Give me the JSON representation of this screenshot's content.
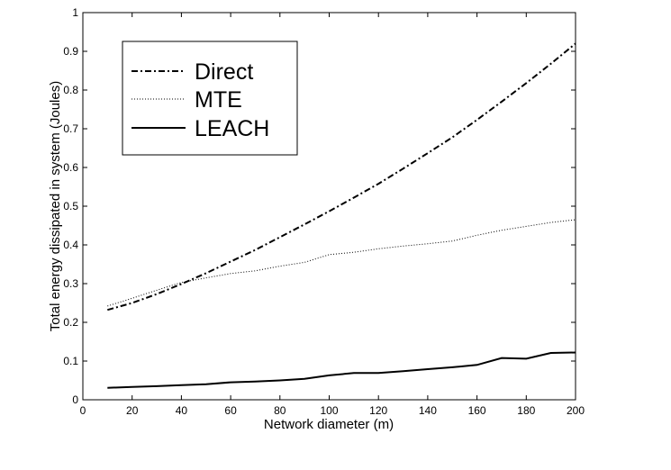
{
  "chart_data": {
    "type": "line",
    "title": "",
    "xlabel": "Network diameter (m)",
    "ylabel": "Total energy dissipated in system (Joules)",
    "xlim": [
      0,
      200
    ],
    "ylim": [
      0,
      1
    ],
    "x_ticks": [
      0,
      20,
      40,
      60,
      80,
      100,
      120,
      140,
      160,
      180,
      200
    ],
    "y_ticks": [
      0,
      0.1,
      0.2,
      0.3,
      0.4,
      0.5,
      0.6,
      0.7,
      0.8,
      0.9,
      1
    ],
    "y_tick_labels": [
      "0",
      "0.1",
      "0.2",
      "0.3",
      "0.4",
      "0.5",
      "0.6",
      "0.7",
      "0.8",
      "0.9",
      "1"
    ],
    "grid": false,
    "legend_position": "top-left",
    "x": [
      10,
      20,
      30,
      40,
      50,
      60,
      70,
      80,
      90,
      100,
      110,
      120,
      130,
      140,
      150,
      160,
      170,
      180,
      190,
      200
    ],
    "series": [
      {
        "name": "Direct",
        "style": "dash-dot",
        "color": "#000000",
        "values": [
          0.232,
          0.25,
          0.273,
          0.299,
          0.327,
          0.357,
          0.387,
          0.42,
          0.453,
          0.487,
          0.522,
          0.558,
          0.597,
          0.637,
          0.678,
          0.723,
          0.77,
          0.818,
          0.868,
          0.92
        ]
      },
      {
        "name": "MTE",
        "style": "dotted",
        "color": "#000000",
        "values": [
          0.242,
          0.262,
          0.283,
          0.303,
          0.315,
          0.326,
          0.333,
          0.345,
          0.355,
          0.375,
          0.381,
          0.39,
          0.397,
          0.403,
          0.41,
          0.425,
          0.438,
          0.448,
          0.458,
          0.465
        ]
      },
      {
        "name": "LEACH",
        "style": "solid",
        "color": "#000000",
        "values": [
          0.031,
          0.033,
          0.035,
          0.038,
          0.04,
          0.045,
          0.047,
          0.05,
          0.054,
          0.063,
          0.069,
          0.069,
          0.074,
          0.079,
          0.084,
          0.09,
          0.108,
          0.106,
          0.121,
          0.122
        ]
      }
    ]
  }
}
